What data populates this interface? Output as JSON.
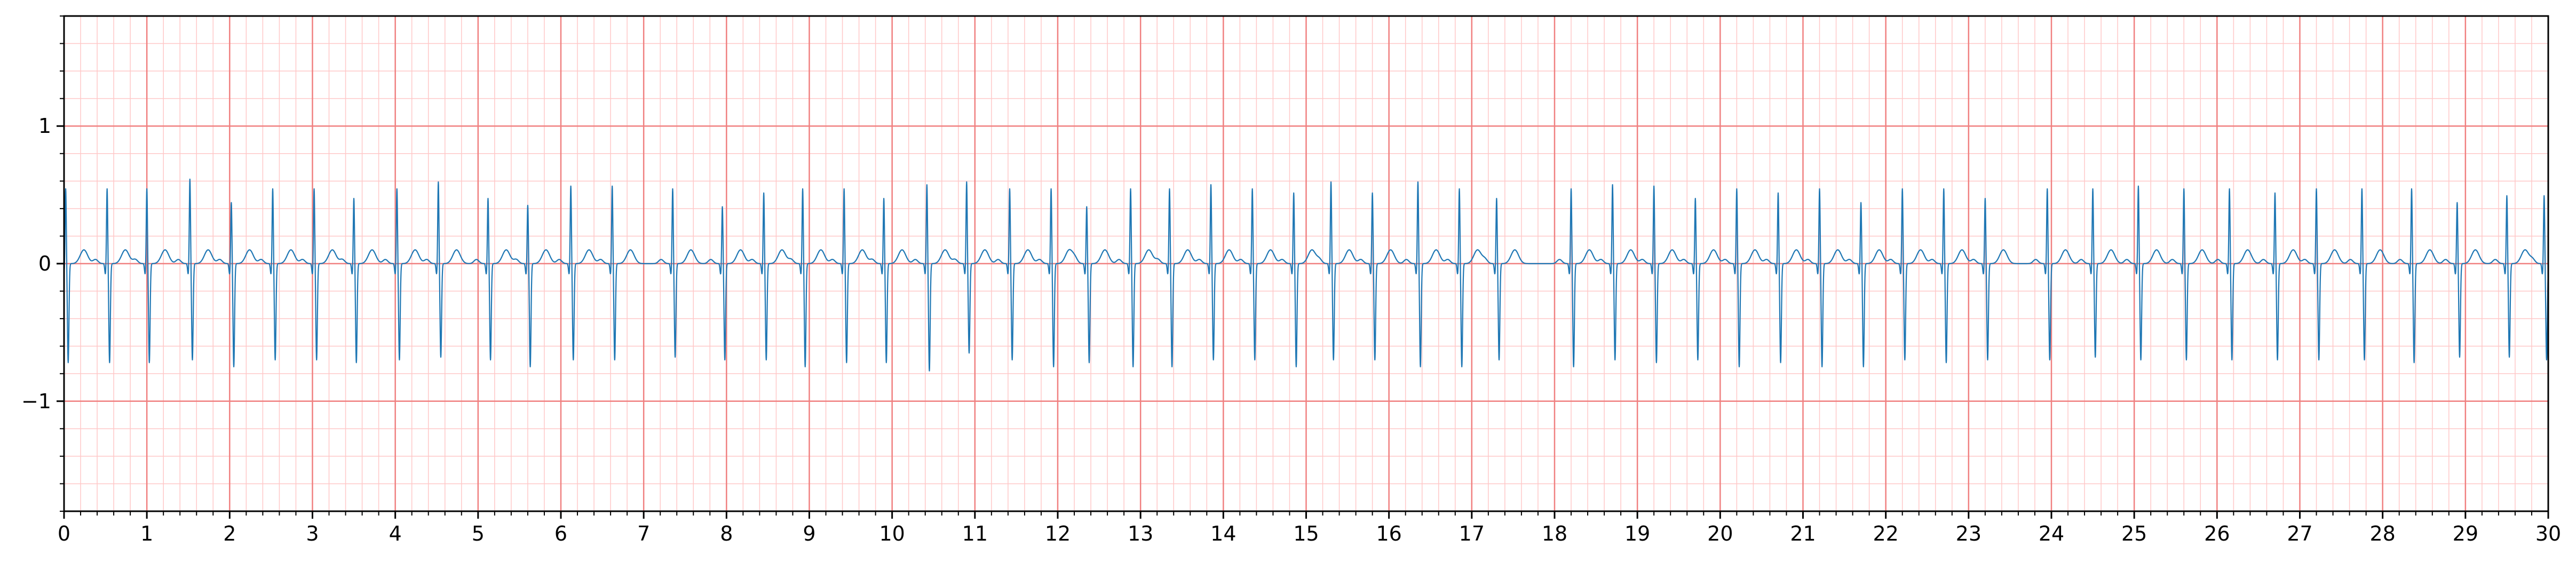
{
  "chart_data": {
    "type": "line",
    "title": "",
    "xlabel": "",
    "ylabel": "",
    "xlim": [
      0,
      30
    ],
    "ylim": [
      -1.8,
      1.8
    ],
    "x_ticks": [
      "0",
      "1",
      "2",
      "3",
      "4",
      "5",
      "6",
      "7",
      "8",
      "9",
      "10",
      "11",
      "12",
      "13",
      "14",
      "15",
      "16",
      "17",
      "18",
      "19",
      "20",
      "21",
      "22",
      "23",
      "24",
      "25",
      "26",
      "27",
      "28",
      "29",
      "30"
    ],
    "y_ticks": [
      "−1",
      "0",
      "1"
    ],
    "y_tick_values": [
      -1,
      0,
      1
    ],
    "grid": {
      "major_x_step": 1,
      "major_y_step": 1,
      "minor_x_step": 0.2,
      "minor_y_step": 0.2,
      "major_color": "#f08080",
      "minor_color": "#ffc8c8"
    },
    "series": [
      {
        "color": "#1f77b4",
        "beat_times": [
          0.02,
          0.52,
          1.0,
          1.52,
          2.02,
          2.52,
          3.02,
          3.5,
          4.02,
          4.52,
          5.12,
          5.6,
          6.12,
          6.62,
          7.35,
          7.95,
          8.45,
          8.92,
          9.42,
          9.9,
          10.42,
          10.9,
          11.42,
          11.92,
          12.35,
          12.88,
          13.35,
          13.85,
          14.35,
          14.85,
          15.3,
          15.8,
          16.35,
          16.85,
          17.3,
          18.2,
          18.7,
          19.2,
          19.7,
          20.2,
          20.7,
          21.2,
          21.7,
          22.2,
          22.7,
          23.2,
          23.95,
          24.5,
          25.05,
          25.6,
          26.15,
          26.7,
          27.2,
          27.75,
          28.35,
          28.9,
          29.5,
          29.95
        ],
        "r_amplitudes": [
          0.55,
          0.55,
          0.55,
          0.62,
          0.45,
          0.55,
          0.55,
          0.48,
          0.55,
          0.6,
          0.48,
          0.43,
          0.57,
          0.57,
          0.55,
          0.42,
          0.52,
          0.55,
          0.55,
          0.48,
          0.58,
          0.6,
          0.55,
          0.55,
          0.42,
          0.55,
          0.55,
          0.58,
          0.55,
          0.52,
          0.6,
          0.52,
          0.6,
          0.55,
          0.48,
          0.55,
          0.58,
          0.57,
          0.48,
          0.55,
          0.52,
          0.55,
          0.45,
          0.55,
          0.55,
          0.48,
          0.55,
          0.55,
          0.57,
          0.55,
          0.55,
          0.52,
          0.55,
          0.55,
          0.55,
          0.45,
          0.5,
          0.5
        ],
        "s_amplitudes": [
          -0.72,
          -0.72,
          -0.72,
          -0.7,
          -0.75,
          -0.7,
          -0.7,
          -0.72,
          -0.7,
          -0.68,
          -0.7,
          -0.75,
          -0.7,
          -0.7,
          -0.68,
          -0.7,
          -0.7,
          -0.75,
          -0.72,
          -0.72,
          -0.78,
          -0.65,
          -0.7,
          -0.75,
          -0.72,
          -0.75,
          -0.75,
          -0.7,
          -0.7,
          -0.75,
          -0.7,
          -0.7,
          -0.75,
          -0.75,
          -0.7,
          -0.75,
          -0.7,
          -0.72,
          -0.7,
          -0.75,
          -0.72,
          -0.75,
          -0.75,
          -0.7,
          -0.72,
          -0.7,
          -0.7,
          -0.68,
          -0.7,
          -0.7,
          -0.7,
          -0.7,
          -0.7,
          -0.7,
          -0.72,
          -0.68,
          -0.68,
          -0.7
        ],
        "t_wave_amplitude": 0.1,
        "p_wave_amplitude": 0.03
      }
    ]
  }
}
